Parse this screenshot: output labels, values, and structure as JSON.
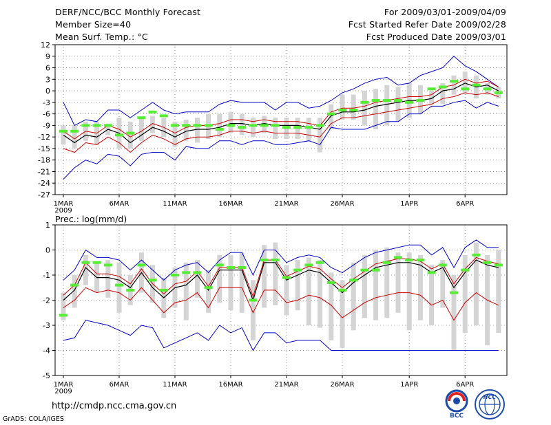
{
  "header": {
    "title": "DERF/NCC/BCC Monthly Forecast",
    "member": "Member Size=40",
    "variable": "Mean Surf. Temp.: °C",
    "period": "For 2009/03/01-2009/04/09",
    "started": "Fcst Started Refer Date 2009/02/28",
    "produced": "Fcst Produced Date 2009/03/01"
  },
  "footer": {
    "url": "http://cmdp.ncc.cma.gov.cn",
    "credit": "GrADS: COLA/IGES"
  },
  "logos": {
    "bcc": "BCC",
    "ncc": "NCC"
  },
  "colors": {
    "mean": "#000000",
    "spread": "#cc0000",
    "envelope": "#0000cc",
    "box": "#d4d4d4",
    "obs": "#55ee33",
    "grid": "#888888"
  },
  "chart_data": [
    {
      "type": "line",
      "title": "Mean Surf. Temp.: °C",
      "ylim": [
        -27,
        12
      ],
      "yticks": [
        "12",
        "9",
        "6",
        "3",
        "0",
        "-3",
        "-6",
        "-9",
        "-12",
        "-15",
        "-18",
        "-21",
        "-24",
        "-27"
      ],
      "xticks": [
        "1MAR",
        "6MAR",
        "11MAR",
        "16MAR",
        "21MAR",
        "26MAR",
        "1APR",
        "6APR"
      ],
      "xtick_days": [
        1,
        6,
        11,
        16,
        21,
        26,
        32,
        37
      ],
      "year_label": "2009",
      "days": [
        1,
        2,
        3,
        4,
        5,
        6,
        7,
        8,
        9,
        10,
        11,
        12,
        13,
        14,
        15,
        16,
        17,
        18,
        19,
        20,
        21,
        22,
        23,
        24,
        25,
        26,
        27,
        28,
        29,
        30,
        31,
        32,
        33,
        34,
        35,
        36,
        37,
        38,
        39,
        40
      ],
      "series": [
        {
          "name": "mean",
          "values": [
            -11.5,
            -13.5,
            -11.5,
            -12,
            -10,
            -11,
            -13.5,
            -11.5,
            -9.5,
            -10.5,
            -12,
            -10.5,
            -10,
            -10,
            -9.5,
            -8.5,
            -8.5,
            -9,
            -8.5,
            -9,
            -9,
            -9,
            -9.5,
            -10,
            -6.5,
            -5.5,
            -5.5,
            -5,
            -4,
            -3.5,
            -3,
            -2.5,
            -2.5,
            -2,
            0,
            0.5,
            2,
            1,
            1.5,
            0
          ]
        },
        {
          "name": "upper",
          "values": [
            -10.5,
            -12.5,
            -10.5,
            -11,
            -9,
            -10,
            -12,
            -10.5,
            -8.5,
            -9.5,
            -11,
            -9.5,
            -9,
            -9,
            -8.5,
            -7.5,
            -7.5,
            -8,
            -7.5,
            -8,
            -8,
            -8,
            -8.5,
            -9,
            -5.5,
            -4.5,
            -4.5,
            -4,
            -3,
            -2.5,
            -2,
            -1.5,
            -1.5,
            -1,
            1,
            1.5,
            3,
            2,
            2.5,
            1
          ]
        },
        {
          "name": "lower",
          "values": [
            -15,
            -16,
            -13.5,
            -14,
            -12,
            -13.5,
            -16,
            -13.5,
            -11.5,
            -12.5,
            -14,
            -12.5,
            -12,
            -12,
            -11.5,
            -10.5,
            -10.5,
            -11,
            -10.5,
            -11,
            -11,
            -11,
            -11.5,
            -12,
            -8.5,
            -7,
            -7,
            -6.5,
            -6,
            -5.5,
            -5,
            -4.5,
            -4,
            -3.5,
            -2,
            -1.5,
            -0.5,
            -1,
            -0.5,
            -1.5
          ]
        },
        {
          "name": "max",
          "values": [
            -3,
            -9,
            -7.5,
            -8,
            -5,
            -5,
            -7,
            -5,
            -3,
            -5,
            -6,
            -5.5,
            -5.5,
            -5.5,
            -3.5,
            -2.5,
            -3,
            -3,
            -3,
            -5,
            -3,
            -3,
            -4.5,
            -4,
            -2.5,
            -0.5,
            0.5,
            2,
            3,
            3.5,
            1.5,
            2,
            4,
            5,
            6,
            9,
            6.5,
            5,
            3,
            1
          ]
        },
        {
          "name": "min",
          "values": [
            -23,
            -20,
            -18,
            -19,
            -16.5,
            -17,
            -19.5,
            -16.5,
            -16,
            -16,
            -18,
            -14.5,
            -15,
            -15,
            -13,
            -13,
            -14,
            -13,
            -13,
            -14,
            -14,
            -13.5,
            -13,
            -14,
            -9.5,
            -10,
            -10,
            -10,
            -9,
            -8,
            -8,
            -6,
            -6,
            -4,
            -4,
            -3,
            -2.5,
            -4.5,
            -3,
            -4
          ]
        },
        {
          "name": "box_low",
          "values": [
            -14,
            -15,
            -13,
            -14,
            -11.5,
            -15,
            -15,
            -13,
            -11,
            -12,
            -14.5,
            -13,
            -13.5,
            -12.5,
            -12,
            -11,
            -11.5,
            -12,
            -11,
            -12.5,
            -12.5,
            -12.5,
            -13,
            -16,
            -10,
            -7.5,
            -7.5,
            -9,
            -10,
            -9,
            -8,
            -7,
            -6,
            -3.5,
            -3.5,
            -1,
            -0.5,
            -2,
            -1,
            -2
          ]
        },
        {
          "name": "box_high",
          "values": [
            -9,
            -9,
            -8,
            -8,
            -8.5,
            -7,
            -8,
            -7,
            -6.5,
            -7,
            -8,
            -7.5,
            -7,
            -6,
            -6,
            -5.5,
            -6,
            -7,
            -6.5,
            -7,
            -7,
            -7,
            -7,
            -7,
            -3.5,
            -1,
            -1,
            0,
            0.5,
            1.5,
            1,
            2,
            1.5,
            0,
            2,
            4,
            5,
            4,
            2,
            1
          ]
        },
        {
          "name": "observed",
          "values": [
            -10.5,
            -10.5,
            -9,
            -9,
            -9,
            -11.5,
            -11,
            -7,
            -5.5,
            -6.5,
            -9,
            -9,
            -9,
            -9,
            -10,
            -9,
            -9.5,
            -9,
            -9,
            -9,
            -9.5,
            -9.5,
            -9.5,
            -9,
            -6,
            -5,
            -5,
            -3,
            -2.5,
            -2.5,
            -2.5,
            -3,
            -2.5,
            0.5,
            1,
            2.5,
            0.5,
            1.5,
            0.5,
            -0.5
          ]
        }
      ]
    },
    {
      "type": "line",
      "title": "Prec.: log(mm/d)",
      "ylim": [
        -5,
        1
      ],
      "yticks": [
        "1",
        "0",
        "-1",
        "-2",
        "-3",
        "-4",
        "-5"
      ],
      "xticks": [
        "1MAR",
        "6MAR",
        "11MAR",
        "16MAR",
        "21MAR",
        "26MAR",
        "1APR",
        "6APR"
      ],
      "xtick_days": [
        1,
        6,
        11,
        16,
        21,
        26,
        32,
        37
      ],
      "year_label": "2009",
      "days": [
        1,
        2,
        3,
        4,
        5,
        6,
        7,
        8,
        9,
        10,
        11,
        12,
        13,
        14,
        15,
        16,
        17,
        18,
        19,
        20,
        21,
        22,
        23,
        24,
        25,
        26,
        27,
        28,
        29,
        30,
        31,
        32,
        33,
        34,
        35,
        36,
        37,
        38,
        39,
        40
      ],
      "series": [
        {
          "name": "mean",
          "values": [
            -2,
            -1.6,
            -0.7,
            -1.1,
            -1.1,
            -1.2,
            -1.5,
            -0.9,
            -1.5,
            -1.9,
            -1.5,
            -1.4,
            -1,
            -1.6,
            -0.8,
            -0.8,
            -0.8,
            -2,
            -0.5,
            -0.5,
            -1.2,
            -1,
            -0.8,
            -0.9,
            -1.3,
            -1.7,
            -1.3,
            -1,
            -0.7,
            -0.6,
            -0.5,
            -0.5,
            -0.6,
            -0.9,
            -0.7,
            -1.5,
            -0.9,
            -0.4,
            -0.6,
            -0.7
          ]
        },
        {
          "name": "upper",
          "values": [
            -1.8,
            -1.4,
            -0.5,
            -0.95,
            -0.95,
            -1.05,
            -1.35,
            -0.75,
            -1.35,
            -1.75,
            -1.35,
            -1.25,
            -0.85,
            -1.45,
            -0.7,
            -0.7,
            -0.7,
            -1.85,
            -0.4,
            -0.4,
            -1.05,
            -0.85,
            -0.65,
            -0.75,
            -1.15,
            -1.5,
            -1.15,
            -0.85,
            -0.55,
            -0.45,
            -0.35,
            -0.35,
            -0.45,
            -0.75,
            -0.55,
            -1.35,
            -0.75,
            -0.3,
            -0.45,
            -0.55
          ]
        },
        {
          "name": "lower",
          "values": [
            -2.3,
            -2,
            -1.5,
            -1.7,
            -1.6,
            -1.7,
            -2,
            -1.5,
            -2,
            -2.5,
            -2.1,
            -2,
            -1.7,
            -2.3,
            -1.5,
            -1.5,
            -1.5,
            -2.5,
            -1.6,
            -1.6,
            -2.1,
            -2,
            -1.8,
            -1.9,
            -2.2,
            -2.7,
            -2.4,
            -2.1,
            -1.9,
            -1.8,
            -1.7,
            -1.7,
            -1.8,
            -2.2,
            -2,
            -2.8,
            -2.1,
            -1.7,
            -2,
            -2.2
          ]
        },
        {
          "name": "max",
          "values": [
            -1.2,
            -0.8,
            0,
            -0.3,
            -0.3,
            -0.4,
            -0.8,
            -0.4,
            -0.8,
            -1.2,
            -0.8,
            -0.6,
            -0.5,
            -0.9,
            -0.4,
            -0.1,
            -0.1,
            -1,
            0,
            0,
            -0.5,
            -0.3,
            -0.2,
            -0.3,
            -0.7,
            -0.9,
            -0.6,
            -0.3,
            -0.1,
            0,
            0.1,
            0.2,
            0.2,
            -0.2,
            0.1,
            -0.7,
            0.1,
            0.4,
            0.1,
            0.1
          ]
        },
        {
          "name": "min",
          "values": [
            -3.6,
            -3.5,
            -2.8,
            -2.9,
            -3,
            -3.2,
            -3.4,
            -3,
            -3.1,
            -3.9,
            -3.7,
            -3.5,
            -3.3,
            -3.6,
            -3,
            -3.3,
            -3.1,
            -4,
            -3.3,
            -3.3,
            -3.7,
            -3.6,
            -3.6,
            -3.6,
            -4,
            -4,
            -4,
            -4,
            -4,
            -4,
            -4,
            -4,
            -4,
            -4,
            -4,
            -4,
            -4,
            -4,
            -4,
            -4
          ]
        },
        {
          "name": "box_low",
          "values": [
            -2.8,
            -2.3,
            -1.4,
            -1.7,
            -1.9,
            -2.5,
            -2.2,
            -1.7,
            -2.1,
            -2.7,
            -2.3,
            -2.8,
            -1.9,
            -2.5,
            -2.1,
            -2.4,
            -2.5,
            -3.6,
            -2.3,
            -2.2,
            -2.6,
            -2.4,
            -3,
            -3.1,
            -3.6,
            -3.9,
            -3.2,
            -2.7,
            -2.8,
            -2.7,
            -2.5,
            -3.2,
            -2.8,
            -3,
            -2.3,
            -4,
            -3.3,
            -3,
            -3.8,
            -3.3
          ]
        },
        {
          "name": "box_high",
          "values": [
            -1.7,
            -1,
            -0.2,
            -0.5,
            -0.4,
            -0.5,
            -1,
            -0.1,
            -0.6,
            -1.1,
            -0.7,
            -0.5,
            -0.4,
            -0.8,
            -0.2,
            -0.2,
            -0.1,
            -1.2,
            0.2,
            0.3,
            -0.6,
            -0.4,
            -0.3,
            -0.4,
            -0.9,
            -1.2,
            -0.5,
            -0.2,
            0,
            0.1,
            -0.1,
            -0.1,
            -0.2,
            -0.6,
            -0.4,
            -1,
            -0.2,
            0.3,
            -0.2,
            0
          ]
        },
        {
          "name": "observed",
          "values": [
            -2.6,
            -1.4,
            -0.5,
            -0.5,
            -0.6,
            -1.4,
            -1.6,
            -0.6,
            -1.2,
            -1.6,
            -1,
            -0.9,
            -0.9,
            -1.5,
            -0.6,
            -0.7,
            -0.7,
            -2,
            -0.4,
            -0.4,
            -1.1,
            -0.8,
            -0.6,
            -0.5,
            -1.3,
            -1.6,
            -1.2,
            -0.8,
            -0.8,
            -0.5,
            -0.3,
            -0.4,
            -0.4,
            -0.9,
            -0.6,
            -1.7,
            -0.8,
            -0.2,
            -0.5,
            -0.6
          ]
        }
      ]
    }
  ]
}
